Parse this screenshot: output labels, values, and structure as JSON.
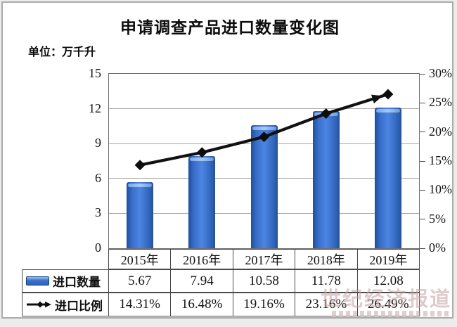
{
  "page": {
    "title": "申请调查产品进口数量变化图",
    "unit_label": "单位：万千升"
  },
  "watermark": {
    "text": "世纪经济报道"
  },
  "chart_data": {
    "type": "combo",
    "subtypes": [
      "bar",
      "line"
    ],
    "title": "申请调查产品进口数量变化图",
    "unit": "万千升",
    "categories": [
      "2015年",
      "2016年",
      "2017年",
      "2018年",
      "2019年"
    ],
    "series": [
      {
        "name": "进口数量",
        "type": "bar",
        "axis": "left",
        "color": "#2f66c4",
        "values": [
          5.67,
          7.94,
          10.58,
          11.78,
          12.08
        ],
        "display": [
          "5.67",
          "7.94",
          "10.58",
          "11.78",
          "12.08"
        ]
      },
      {
        "name": "进口比例",
        "type": "line",
        "axis": "right",
        "color": "#111111",
        "marker": "diamond",
        "end_marker": "arrow",
        "values": [
          14.31,
          16.48,
          19.16,
          23.16,
          26.49
        ],
        "display": [
          "14.31%",
          "16.48%",
          "19.16%",
          "23.16%",
          "26.49%"
        ]
      }
    ],
    "left_axis": {
      "min": 0,
      "max": 15,
      "step": 3,
      "ticks": [
        "0",
        "3",
        "6",
        "9",
        "12",
        "15"
      ]
    },
    "right_axis": {
      "min": 0,
      "max": 30,
      "step": 5,
      "ticks": [
        "0%",
        "5%",
        "10%",
        "15%",
        "20%",
        "25%",
        "30%"
      ]
    },
    "grid": true,
    "legend_position": "table-left"
  }
}
